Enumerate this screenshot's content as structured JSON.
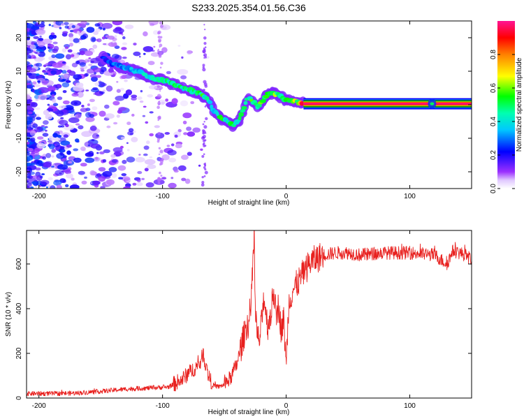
{
  "figure": {
    "title": "S233.2025.354.01.56.C36"
  },
  "chart_data": [
    {
      "type": "heatmap",
      "title": "",
      "xlabel": "Height of straight line (km)",
      "ylabel": "Frequency (Hz)",
      "xlim": [
        -210,
        150
      ],
      "ylim": [
        -25,
        25
      ],
      "xticks": [
        -200,
        -100,
        0,
        100
      ],
      "yticks": [
        -20,
        -10,
        0,
        10,
        20
      ],
      "colorbar": {
        "label": "Normalized spectral amplitude",
        "range": [
          0,
          1
        ],
        "ticks": [
          0.0,
          0.2,
          0.4,
          0.6,
          0.8
        ],
        "colors": [
          "#ffffff",
          "#9b30ff",
          "#0000ff",
          "#00ffff",
          "#00ff00",
          "#ffff00",
          "#ff8000",
          "#ff0000",
          "#ff1493"
        ]
      },
      "ridge": {
        "name": "carrier frequency ridge",
        "x": [
          -148,
          -140,
          -130,
          -120,
          -110,
          -100,
          -90,
          -80,
          -70,
          -63,
          -58,
          -53,
          -48,
          -43,
          -39,
          -35,
          -31,
          -27,
          -23,
          -19,
          -15,
          -11,
          -7,
          -3,
          0,
          5,
          10,
          14,
          30,
          60,
          100,
          118,
          150
        ],
        "y": [
          14,
          12,
          11,
          10,
          8,
          7.5,
          6,
          4.5,
          3.5,
          1.5,
          -2,
          -4,
          -5,
          -6,
          -5,
          -2,
          2,
          1,
          -0.5,
          1,
          3,
          3.5,
          3,
          2,
          1.5,
          1,
          0.8,
          0.5,
          0.5,
          0.5,
          0.5,
          0.5,
          0.5
        ],
        "amplitude": [
          0.25,
          0.3,
          0.35,
          0.4,
          0.45,
          0.45,
          0.5,
          0.5,
          0.55,
          0.5,
          0.45,
          0.55,
          0.5,
          0.5,
          0.55,
          0.5,
          0.55,
          0.6,
          0.55,
          0.6,
          0.55,
          0.6,
          0.6,
          0.55,
          0.6,
          0.65,
          0.7,
          0.95,
          1.0,
          1.0,
          1.0,
          1.0,
          1.0
        ]
      }
    },
    {
      "type": "line",
      "title": "",
      "xlabel": "Height of straight line (km)",
      "ylabel": "SNR (10 * v/v)",
      "xlim": [
        -210,
        150
      ],
      "ylim": [
        0,
        750
      ],
      "xticks": [
        -200,
        -100,
        0,
        100
      ],
      "yticks": [
        0,
        200,
        400,
        600
      ],
      "series": [
        {
          "name": "SNR",
          "color": "#e8201e",
          "x": [
            -210,
            -190,
            -170,
            -150,
            -130,
            -110,
            -95,
            -85,
            -75,
            -70,
            -67,
            -64,
            -60,
            -55,
            -50,
            -45,
            -40,
            -35,
            -32,
            -30,
            -28,
            -26,
            -25,
            -24,
            -22,
            -20,
            -18,
            -15,
            -12,
            -10,
            -8,
            -6,
            -4,
            -2,
            0,
            2,
            5,
            10,
            15,
            20,
            30,
            40,
            50,
            60,
            80,
            100,
            120,
            130,
            135,
            140,
            145,
            150
          ],
          "y": [
            20,
            20,
            22,
            30,
            40,
            45,
            50,
            80,
            130,
            150,
            200,
            120,
            60,
            50,
            60,
            90,
            150,
            260,
            330,
            330,
            450,
            740,
            400,
            300,
            250,
            330,
            460,
            320,
            390,
            480,
            360,
            420,
            300,
            350,
            150,
            420,
            480,
            520,
            570,
            610,
            640,
            650,
            650,
            640,
            650,
            650,
            640,
            600,
            660,
            650,
            640,
            620
          ],
          "noise": 30
        }
      ]
    }
  ]
}
